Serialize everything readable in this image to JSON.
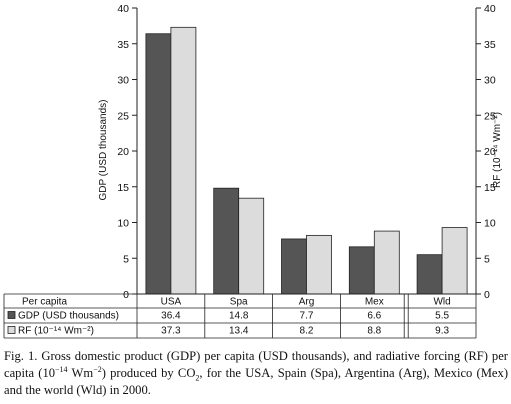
{
  "chart_data": {
    "type": "bar",
    "categories": [
      "USA",
      "Spa",
      "Arg",
      "Mex",
      "Wld"
    ],
    "series": [
      {
        "name": "GDP (USD thousands)",
        "values": [
          36.4,
          14.8,
          7.7,
          6.6,
          5.5
        ],
        "color": "#555555"
      },
      {
        "name": "RF (10⁻¹⁴ Wm⁻²)",
        "values": [
          37.3,
          13.4,
          8.2,
          8.8,
          9.3
        ],
        "color": "#dcdcdc"
      }
    ],
    "ylabel_left": "GDP (USD thousands)",
    "ylabel_right": "RF (10⁻¹⁴ Wm⁻²)",
    "ylim": [
      0,
      40
    ],
    "yticks": [
      0,
      5,
      10,
      15,
      20,
      25,
      30,
      35,
      40
    ],
    "grid": false,
    "legend": "table-below"
  },
  "table": {
    "header": "Per capita",
    "rows": [
      {
        "label": "GDP (USD thousands)",
        "values": [
          "36.4",
          "14.8",
          "7.7",
          "6.6",
          "5.5"
        ]
      },
      {
        "label": "RF (10⁻¹⁴ Wm⁻²)",
        "values": [
          "37.3",
          "13.4",
          "8.2",
          "8.8",
          "9.3"
        ]
      }
    ]
  },
  "caption": {
    "prefix": "Fig. 1. Gross domestic product (GDP) per capita (USD thousands), and radiative forcing (RF) per capita (10",
    "sup1": "−14",
    "mid1": " Wm",
    "sup2": "−2",
    "mid2": ") produced by CO",
    "sub": "2",
    "suffix": ", for the USA, Spain (Spa), Argentina (Arg), Mexico (Mex) and the world (Wld) in 2000."
  }
}
